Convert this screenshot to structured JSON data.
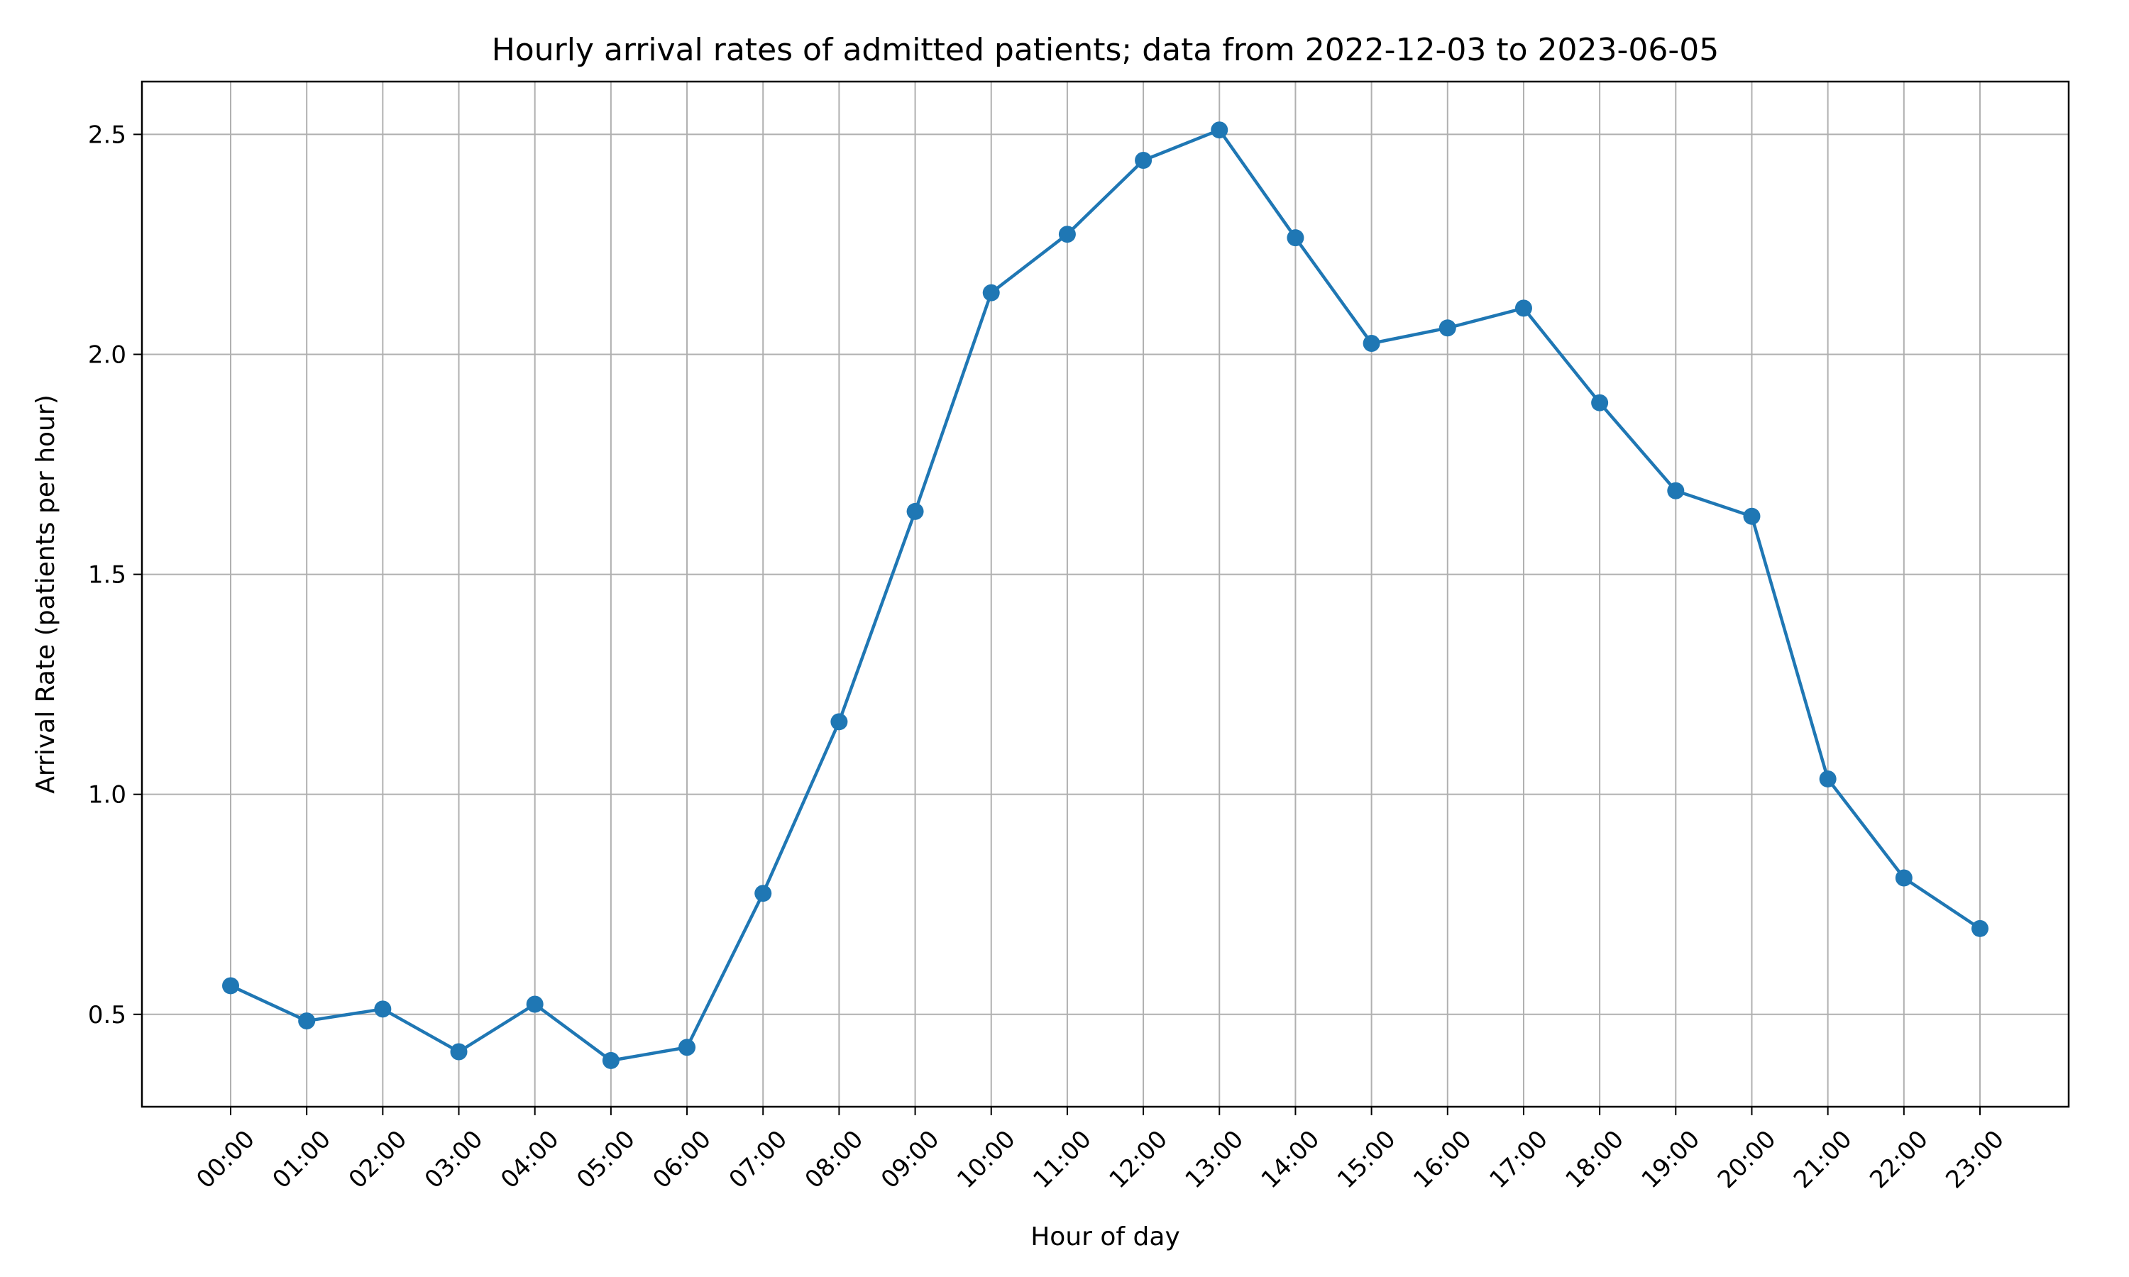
{
  "chart_data": {
    "type": "line",
    "title": "Hourly arrival rates of admitted patients; data from 2022-12-03 to 2023-06-05",
    "xlabel": "Hour of day",
    "ylabel": "Arrival Rate (patients per hour)",
    "categories": [
      "00:00",
      "01:00",
      "02:00",
      "03:00",
      "04:00",
      "05:00",
      "06:00",
      "07:00",
      "08:00",
      "09:00",
      "10:00",
      "11:00",
      "12:00",
      "13:00",
      "14:00",
      "15:00",
      "16:00",
      "17:00",
      "18:00",
      "19:00",
      "20:00",
      "21:00",
      "22:00",
      "23:00"
    ],
    "series": [
      {
        "values": [
          0.565,
          0.485,
          0.512,
          0.415,
          0.523,
          0.395,
          0.425,
          0.775,
          1.165,
          1.643,
          2.14,
          2.273,
          2.441,
          2.51,
          2.265,
          2.025,
          2.06,
          2.105,
          1.89,
          1.69,
          1.632,
          1.035,
          0.81,
          0.695
        ],
        "color": "#1f77b4"
      }
    ],
    "ylim": [
      0.29,
      2.62
    ],
    "yticks": [
      0.5,
      1.0,
      1.5,
      2.0,
      2.5
    ],
    "ytick_labels": [
      "0.5",
      "1.0",
      "1.5",
      "2.0",
      "2.5"
    ],
    "grid": true,
    "marker": "circle"
  }
}
